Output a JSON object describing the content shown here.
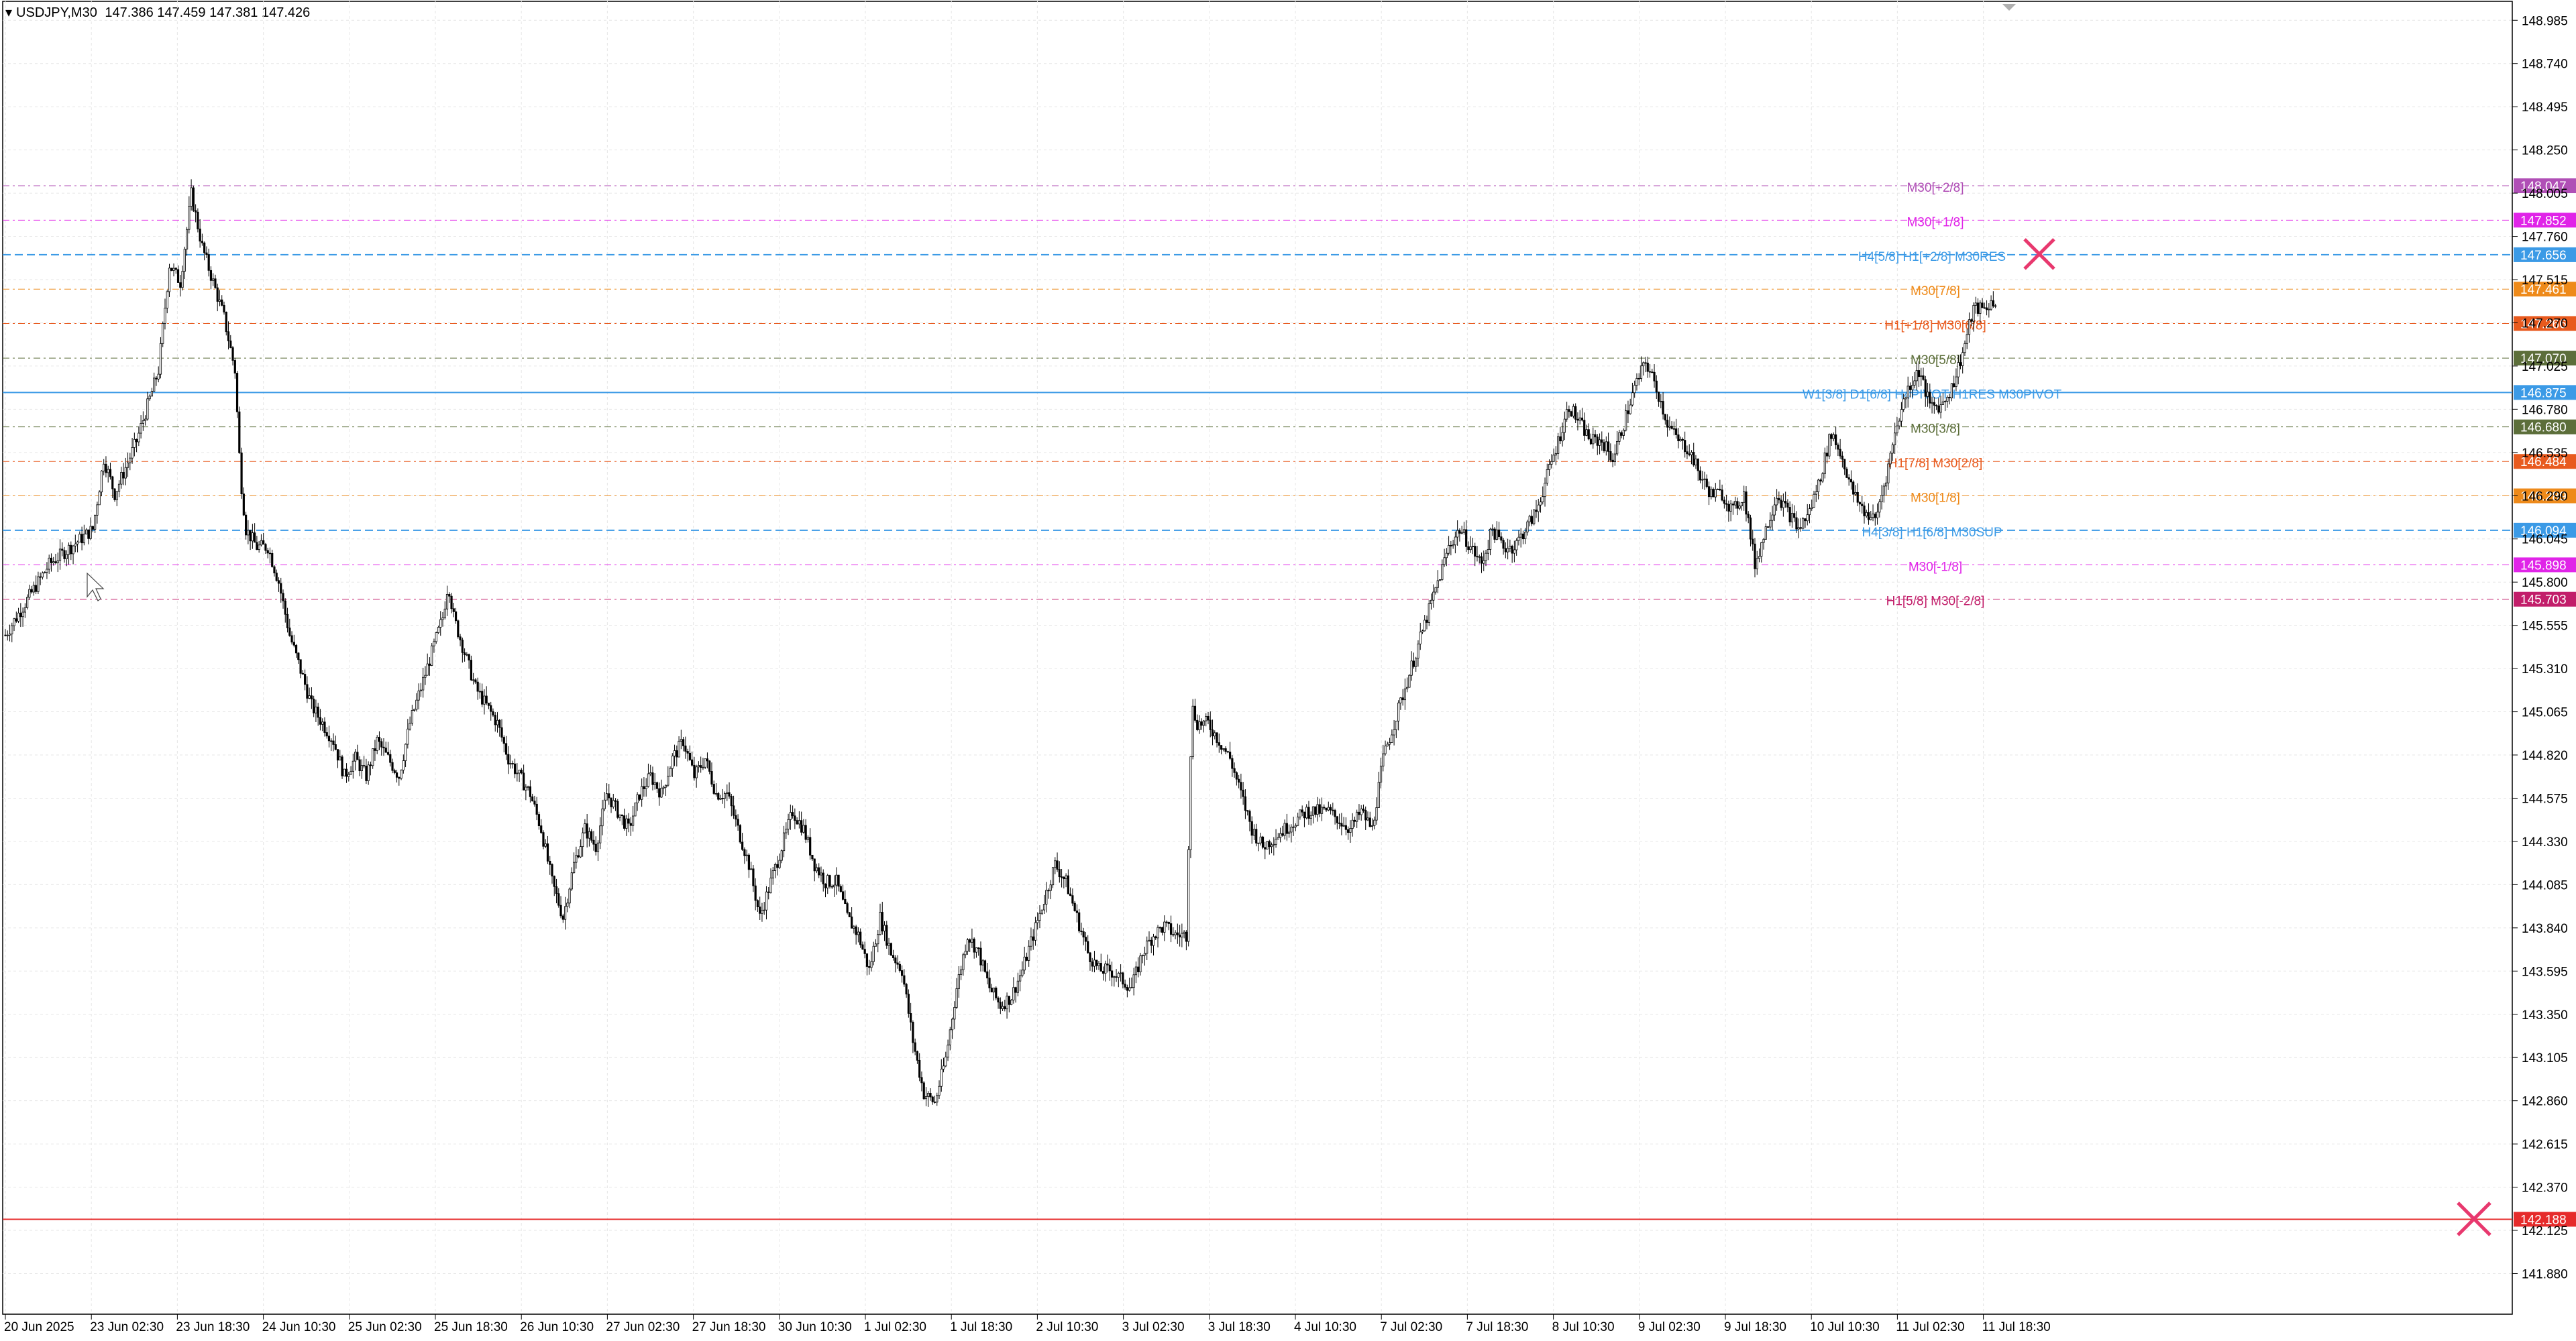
{
  "header": {
    "symbol": "USDJPY,M30",
    "ohlc": "147.386 147.459 147.381 147.426"
  },
  "colors": {
    "background": "#ffffff",
    "grid": "#e6e6e6",
    "candle": "#000000",
    "lavender": "#b04fb6",
    "magenta": "#e024e8",
    "sky": "#3b9ae6",
    "orange": "#ee8a1a",
    "redorange": "#e85a1e",
    "olive": "#5c6e3a",
    "crimson": "#c21e6a",
    "redline": "#e62b2b"
  },
  "chart_data": {
    "type": "candlestick",
    "symbol": "USDJPY",
    "timeframe": "M30",
    "ylim": [
      141.65,
      149.1
    ],
    "y_ticks": [
      "148.985",
      "148.740",
      "148.495",
      "148.250",
      "148.005",
      "147.760",
      "147.515",
      "147.270",
      "147.025",
      "146.780",
      "146.535",
      "146.290",
      "146.045",
      "145.800",
      "145.555",
      "145.310",
      "145.065",
      "144.820",
      "144.575",
      "144.330",
      "144.085",
      "143.840",
      "143.595",
      "143.350",
      "143.105",
      "142.860",
      "142.615",
      "142.370",
      "142.125",
      "141.880"
    ],
    "x_ticks": [
      "20 Jun 2025",
      "23 Jun 02:30",
      "23 Jun 18:30",
      "24 Jun 10:30",
      "25 Jun 02:30",
      "25 Jun 18:30",
      "26 Jun 10:30",
      "27 Jun 02:30",
      "27 Jun 18:30",
      "30 Jun 10:30",
      "1 Jul 02:30",
      "1 Jul 18:30",
      "2 Jul 10:30",
      "3 Jul 02:30",
      "3 Jul 18:30",
      "4 Jul 10:30",
      "7 Jul 02:30",
      "7 Jul 18:30",
      "8 Jul 10:30",
      "9 Jul 02:30",
      "9 Jul 18:30",
      "10 Jul 10:30",
      "11 Jul 02:30",
      "11 Jul 18:30"
    ],
    "price_path": [
      [
        0,
        145.5
      ],
      [
        2,
        145.7
      ],
      [
        4,
        145.9
      ],
      [
        6,
        146.0
      ],
      [
        8,
        146.1
      ],
      [
        9,
        146.5
      ],
      [
        10,
        146.3
      ],
      [
        12,
        146.6
      ],
      [
        14,
        147.0
      ],
      [
        15,
        147.6
      ],
      [
        16,
        147.5
      ],
      [
        17,
        148.0
      ],
      [
        18,
        147.7
      ],
      [
        19,
        147.5
      ],
      [
        20,
        147.3
      ],
      [
        21,
        147.0
      ],
      [
        21.5,
        146.4
      ],
      [
        22,
        146.1
      ],
      [
        23,
        146.0
      ],
      [
        24,
        146.0
      ],
      [
        25,
        145.8
      ],
      [
        26,
        145.5
      ],
      [
        27,
        145.3
      ],
      [
        28,
        145.1
      ],
      [
        29,
        145.0
      ],
      [
        30,
        144.9
      ],
      [
        31,
        144.7
      ],
      [
        32,
        144.8
      ],
      [
        33,
        144.7
      ],
      [
        34,
        144.9
      ],
      [
        35,
        144.8
      ],
      [
        36,
        144.7
      ],
      [
        37,
        145.0
      ],
      [
        38,
        145.2
      ],
      [
        39,
        145.4
      ],
      [
        40,
        145.6
      ],
      [
        40.5,
        145.8
      ],
      [
        41,
        145.6
      ],
      [
        42,
        145.4
      ],
      [
        43,
        145.2
      ],
      [
        44,
        145.1
      ],
      [
        45,
        145.0
      ],
      [
        46,
        144.8
      ],
      [
        47,
        144.7
      ],
      [
        48,
        144.6
      ],
      [
        49,
        144.4
      ],
      [
        50,
        144.1
      ],
      [
        51,
        143.9
      ],
      [
        52,
        144.2
      ],
      [
        53,
        144.4
      ],
      [
        54,
        144.3
      ],
      [
        55,
        144.6
      ],
      [
        56,
        144.5
      ],
      [
        57,
        144.4
      ],
      [
        58,
        144.6
      ],
      [
        59,
        144.7
      ],
      [
        60,
        144.6
      ],
      [
        61,
        144.8
      ],
      [
        62,
        144.9
      ],
      [
        63,
        144.7
      ],
      [
        64,
        144.8
      ],
      [
        65,
        144.6
      ],
      [
        66,
        144.6
      ],
      [
        67,
        144.4
      ],
      [
        68,
        144.2
      ],
      [
        69,
        143.9
      ],
      [
        70,
        144.1
      ],
      [
        71,
        144.3
      ],
      [
        72,
        144.5
      ],
      [
        73,
        144.4
      ],
      [
        74,
        144.2
      ],
      [
        75,
        144.1
      ],
      [
        76,
        144.1
      ],
      [
        77,
        143.9
      ],
      [
        78,
        143.8
      ],
      [
        79,
        143.6
      ],
      [
        80,
        143.9
      ],
      [
        81,
        143.7
      ],
      [
        82,
        143.6
      ],
      [
        83,
        143.2
      ],
      [
        84,
        142.9
      ],
      [
        85,
        142.85
      ],
      [
        86,
        143.1
      ],
      [
        87,
        143.5
      ],
      [
        88,
        143.8
      ],
      [
        89,
        143.7
      ],
      [
        90,
        143.5
      ],
      [
        91,
        143.4
      ],
      [
        92,
        143.45
      ],
      [
        93,
        143.6
      ],
      [
        94,
        143.8
      ],
      [
        95,
        144.0
      ],
      [
        96,
        144.2
      ],
      [
        97,
        144.1
      ],
      [
        98,
        143.9
      ],
      [
        99,
        143.7
      ],
      [
        100,
        143.6
      ],
      [
        101,
        143.6
      ],
      [
        102,
        143.55
      ],
      [
        103,
        143.5
      ],
      [
        104,
        143.7
      ],
      [
        105,
        143.8
      ],
      [
        106,
        143.85
      ],
      [
        107,
        143.8
      ],
      [
        108,
        143.8
      ],
      [
        108.5,
        145.1
      ],
      [
        109,
        145.0
      ],
      [
        110,
        145.0
      ],
      [
        111,
        144.9
      ],
      [
        112,
        144.8
      ],
      [
        113,
        144.6
      ],
      [
        114,
        144.4
      ],
      [
        115,
        144.3
      ],
      [
        116,
        144.35
      ],
      [
        117,
        144.4
      ],
      [
        118,
        144.45
      ],
      [
        119,
        144.5
      ],
      [
        120,
        144.5
      ],
      [
        121,
        144.5
      ],
      [
        122,
        144.45
      ],
      [
        123,
        144.4
      ],
      [
        124,
        144.5
      ],
      [
        125,
        144.4
      ],
      [
        126,
        144.8
      ],
      [
        127,
        145.0
      ],
      [
        128,
        145.2
      ],
      [
        129,
        145.4
      ],
      [
        130,
        145.6
      ],
      [
        131,
        145.8
      ],
      [
        132,
        146.0
      ],
      [
        133,
        146.1
      ],
      [
        134,
        146.0
      ],
      [
        135,
        145.9
      ],
      [
        136,
        146.1
      ],
      [
        137,
        146.0
      ],
      [
        138,
        146.0
      ],
      [
        139,
        146.1
      ],
      [
        140,
        146.2
      ],
      [
        141,
        146.4
      ],
      [
        142,
        146.6
      ],
      [
        143,
        146.8
      ],
      [
        144,
        146.7
      ],
      [
        145,
        146.6
      ],
      [
        146,
        146.6
      ],
      [
        147,
        146.5
      ],
      [
        148,
        146.7
      ],
      [
        149,
        146.9
      ],
      [
        150,
        147.05
      ],
      [
        151,
        146.9
      ],
      [
        152,
        146.7
      ],
      [
        153,
        146.6
      ],
      [
        154,
        146.55
      ],
      [
        155,
        146.4
      ],
      [
        156,
        146.3
      ],
      [
        157,
        146.3
      ],
      [
        158,
        146.2
      ],
      [
        159,
        146.3
      ],
      [
        160,
        145.9
      ],
      [
        161,
        146.1
      ],
      [
        162,
        146.3
      ],
      [
        163,
        146.2
      ],
      [
        164,
        146.1
      ],
      [
        165,
        146.2
      ],
      [
        166,
        146.4
      ],
      [
        167,
        146.65
      ],
      [
        168,
        146.5
      ],
      [
        169,
        146.3
      ],
      [
        170,
        146.2
      ],
      [
        171,
        146.15
      ],
      [
        172,
        146.4
      ],
      [
        173,
        146.7
      ],
      [
        174,
        146.9
      ],
      [
        175,
        147.0
      ],
      [
        176,
        146.8
      ],
      [
        177,
        146.8
      ],
      [
        178,
        146.9
      ],
      [
        179,
        147.1
      ],
      [
        180,
        147.35
      ],
      [
        181,
        147.35
      ],
      [
        182,
        147.4
      ]
    ],
    "levels": [
      {
        "label": "M30[+2/8]",
        "price": "148.047",
        "color": "lavender",
        "style": "dashdot",
        "width": 1
      },
      {
        "label": "M30[+1/8]",
        "price": "147.852",
        "color": "magenta",
        "style": "dashdot",
        "width": 1
      },
      {
        "label": "H4[5/8] H1[+2/8] M30RES",
        "price": "147.656",
        "color": "sky",
        "style": "dash",
        "width": 2
      },
      {
        "label": "M30[7/8]",
        "price": "147.461",
        "color": "orange",
        "style": "dashdot",
        "width": 1
      },
      {
        "label": "H1[+1/8] M30[6/8]",
        "price": "147.266",
        "color": "redorange",
        "style": "dashdot",
        "width": 1
      },
      {
        "label": "M30[5/8]",
        "price": "147.070",
        "color": "olive",
        "style": "dashdot",
        "width": 1
      },
      {
        "label": "W1[3/8] D1[6/8] H4PIVOT H1RES M30PIVOT",
        "price": "146.875",
        "color": "sky",
        "style": "solid",
        "width": 2
      },
      {
        "label": "M30[3/8]",
        "price": "146.680",
        "color": "olive",
        "style": "dashdot",
        "width": 1
      },
      {
        "label": "H1[7/8] M30[2/8]",
        "price": "146.484",
        "color": "redorange",
        "style": "dashdot",
        "width": 1
      },
      {
        "label": "M30[1/8]",
        "price": "146.289",
        "color": "orange",
        "style": "dashdot",
        "width": 1
      },
      {
        "label": "H4[3/8] H1[6/8] M30SUP",
        "price": "146.094",
        "color": "sky",
        "style": "dash",
        "width": 2
      },
      {
        "label": "M30[-1/8]",
        "price": "145.898",
        "color": "magenta",
        "style": "dashdot",
        "width": 1
      },
      {
        "label": "H1[5/8] M30[-2/8]",
        "price": "145.703",
        "color": "crimson",
        "style": "dashdot",
        "width": 1
      },
      {
        "label": "",
        "price": "142.188",
        "color": "redline",
        "style": "solid",
        "width": 2
      }
    ],
    "markers": [
      {
        "type": "x",
        "price": 147.66,
        "color": "#e8386e"
      },
      {
        "type": "x",
        "price": 142.19,
        "color": "#e8386e"
      }
    ]
  }
}
